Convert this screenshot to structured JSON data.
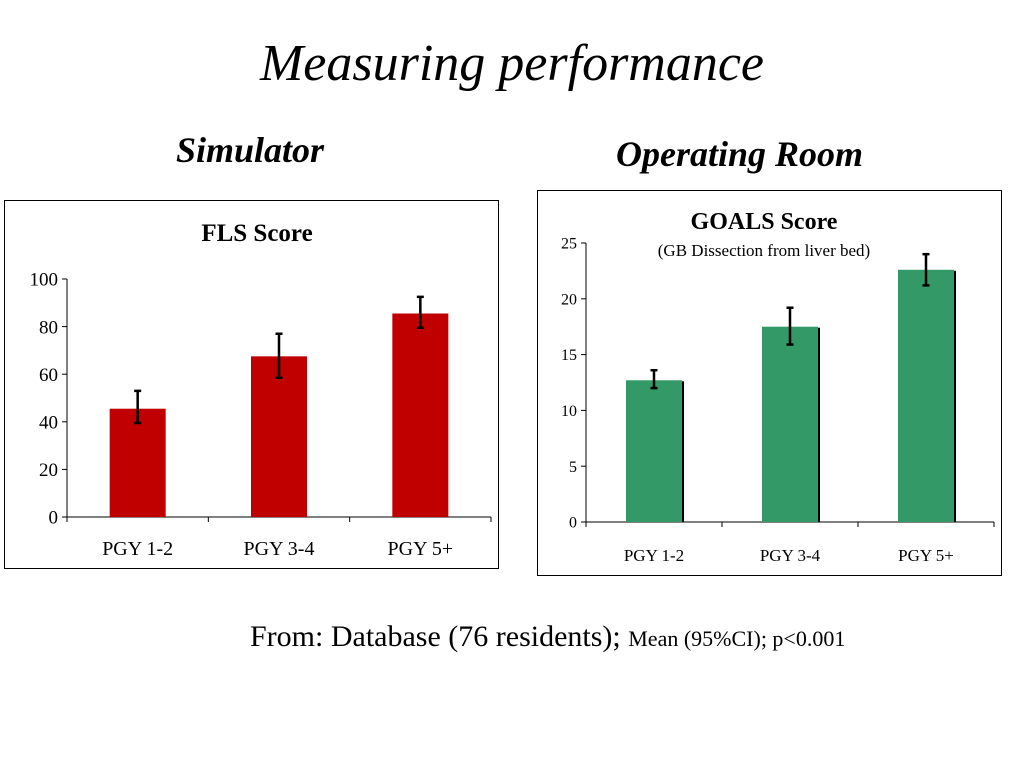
{
  "slide": {
    "title": "Measuring performance",
    "left_heading": "Simulator",
    "right_heading": "Operating Room",
    "footer_main": "From: Database (76 residents);",
    "footer_small": "Mean (95%CI); p<0.001"
  },
  "chart_data": [
    {
      "type": "bar",
      "title": "FLS Score",
      "subtitle": "",
      "categories": [
        "PGY 1-2",
        "PGY 3-4",
        "PGY 5+"
      ],
      "series": [
        {
          "values": [
            45.5,
            67.5,
            85.5
          ],
          "ci_low": [
            39.5,
            58.5,
            79.5
          ],
          "ci_high": [
            53,
            77,
            92.5
          ]
        }
      ],
      "ylim": [
        0,
        100
      ],
      "yticks": [
        0,
        20,
        40,
        60,
        80,
        100
      ],
      "xlabel": "",
      "ylabel": "",
      "grid": false,
      "legend": "none",
      "bar_color": "#c00000"
    },
    {
      "type": "bar",
      "title": "GOALS Score",
      "subtitle": "(GB Dissection from liver bed)",
      "categories": [
        "PGY 1-2",
        "PGY 3-4",
        "PGY 5+"
      ],
      "series": [
        {
          "values": [
            12.7,
            17.5,
            22.6
          ],
          "ci_low": [
            12.0,
            15.9,
            21.2
          ],
          "ci_high": [
            13.6,
            19.2,
            24.0
          ]
        }
      ],
      "ylim": [
        0,
        25
      ],
      "yticks": [
        0,
        5,
        10,
        15,
        20,
        25
      ],
      "xlabel": "",
      "ylabel": "",
      "grid": false,
      "legend": "none",
      "bar_color": "#339966"
    }
  ]
}
